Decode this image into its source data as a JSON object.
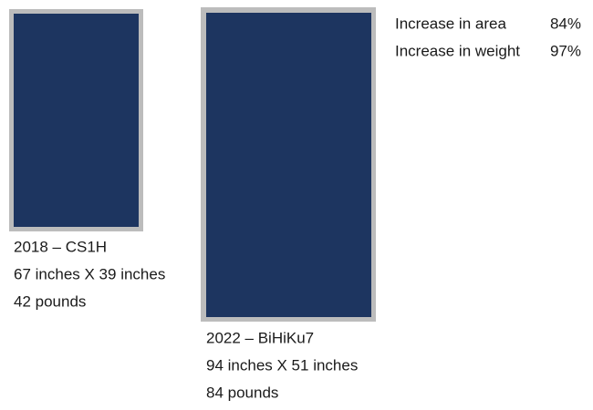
{
  "panels": [
    {
      "model": "2018 – CS1H",
      "dimensions": "67 inches X 39 inches",
      "weight": "42 pounds"
    },
    {
      "model": "2022 – BiHiKu7",
      "dimensions": "94 inches X 51 inches",
      "weight": "84 pounds"
    }
  ],
  "increases": [
    {
      "label": "Increase in area",
      "value": "84%"
    },
    {
      "label": "Increase in weight",
      "value": "97%"
    }
  ]
}
